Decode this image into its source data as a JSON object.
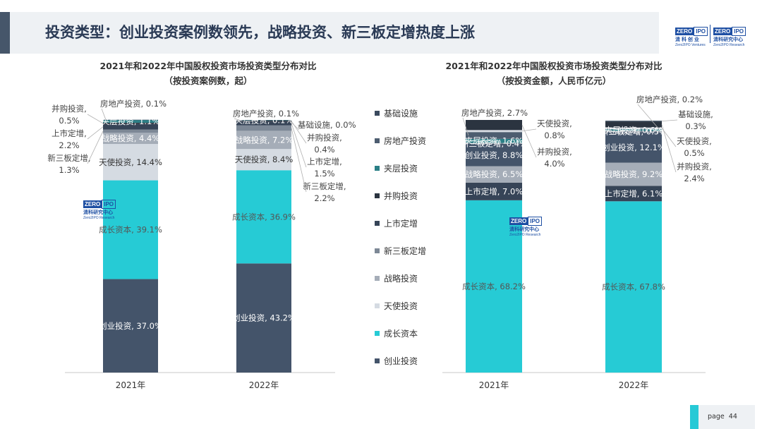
{
  "page": {
    "title": "投资类型：创业投资案例数领先，战略投资、新三板定增热度上涨",
    "page_label": "page",
    "page_number": "44",
    "brand": {
      "zero": "ZERO",
      "ipo": "IPO",
      "left_cn": "清 科 创 业",
      "left_en": "Zero2IPO Ventures",
      "right_cn": "清科研究中心",
      "right_en": "Zero2IPO Research"
    },
    "watermark": {
      "zero": "ZERO",
      "ipo": "IPO",
      "cn": "清科研究中心",
      "en": "Zero2IPO Research"
    }
  },
  "legend": [
    {
      "name": "基础设施",
      "color": "#3a4a5e"
    },
    {
      "name": "房地产投资",
      "color": "#4d5d70"
    },
    {
      "name": "夹层投资",
      "color": "#2a7f86"
    },
    {
      "name": "并购投资",
      "color": "#2b3440"
    },
    {
      "name": "上市定增",
      "color": "#364457"
    },
    {
      "name": "新三板定增",
      "color": "#7d8896"
    },
    {
      "name": "战略投资",
      "color": "#a5adb8"
    },
    {
      "name": "天使投资",
      "color": "#d5dbe2"
    },
    {
      "name": "成长资本",
      "color": "#26cbd5"
    },
    {
      "name": "创业投资",
      "color": "#44546a"
    }
  ],
  "chart_data": [
    {
      "type": "bar",
      "stacked": true,
      "title": "2021年和2022年中国股权投资市场投资类型分布对比",
      "subtitle": "（按投资案例数，起）",
      "categories": [
        "2021年",
        "2022年"
      ],
      "series": [
        {
          "name": "创业投资",
          "values": [
            37.0,
            43.2
          ]
        },
        {
          "name": "成长资本",
          "values": [
            39.1,
            36.9
          ]
        },
        {
          "name": "天使投资",
          "values": [
            14.4,
            8.4
          ]
        },
        {
          "name": "战略投资",
          "values": [
            4.4,
            7.2
          ]
        },
        {
          "name": "新三板定增",
          "values": [
            1.3,
            2.2
          ]
        },
        {
          "name": "上市定增",
          "values": [
            2.2,
            1.5
          ]
        },
        {
          "name": "并购投资",
          "values": [
            0.5,
            0.4
          ]
        },
        {
          "name": "夹层投资",
          "values": [
            1.1,
            0.1
          ]
        },
        {
          "name": "房地产投资",
          "values": [
            0.1,
            0.1
          ]
        },
        {
          "name": "基础设施",
          "values": [
            0.0,
            0.0
          ]
        }
      ],
      "labels": {
        "2021年": {
          "创业投资": "创业投资, 37.0%",
          "成长资本": "成长资本, 39.1%",
          "天使投资": "天使投资, 14.4%",
          "战略投资": "战略投资, 4.4%",
          "夹层投资": "夹层投资, 1.1%",
          "房地产投资": "房地产投资, 0.1%",
          "并购投资_1": "并购投资,",
          "并购投资_2": "0.5%",
          "上市定增_1": "上市定增,",
          "上市定增_2": "2.2%",
          "新三板定增_1": "新三板定增,",
          "新三板定增_2": "1.3%"
        },
        "2022年": {
          "创业投资": "创业投资, 43.2%",
          "成长资本": "成长资本, 36.9%",
          "天使投资": "天使投资, 8.4%",
          "战略投资": "战略投资, 7.2%",
          "夹层投资": "夹层投资, 0.1%",
          "房地产投资": "房地产投资, 0.1%",
          "基础设施": "基础设施, 0.0%",
          "并购投资_1": "并购投资,",
          "并购投资_2": "0.4%",
          "上市定增_1": "上市定增,",
          "上市定增_2": "1.5%",
          "新三板定增_1": "新三板定增,",
          "新三板定增_2": "2.2%"
        }
      }
    },
    {
      "type": "bar",
      "stacked": true,
      "title": "2021年和2022年中国股权投资市场投资类型分布对比",
      "subtitle": "（按投资金额，人民币亿元）",
      "categories": [
        "2021年",
        "2022年"
      ],
      "series": [
        {
          "name": "成长资本",
          "values": [
            68.2,
            67.8
          ]
        },
        {
          "name": "上市定增",
          "values": [
            7.0,
            6.1
          ]
        },
        {
          "name": "战略投资",
          "values": [
            6.5,
            9.2
          ]
        },
        {
          "name": "创业投资",
          "values": [
            8.8,
            12.1
          ]
        },
        {
          "name": "新三板定增",
          "values": [
            0.4,
            0.5
          ]
        },
        {
          "name": "夹层投资",
          "values": [
            1.6,
            0.6
          ]
        },
        {
          "name": "房地产投资",
          "values": [
            2.7,
            0.2
          ]
        },
        {
          "name": "天使投资",
          "values": [
            0.8,
            0.5
          ]
        },
        {
          "name": "并购投资",
          "values": [
            4.0,
            2.4
          ]
        },
        {
          "name": "基础设施",
          "values": [
            0.0,
            0.3
          ]
        }
      ],
      "labels": {
        "2021年": {
          "成长资本": "成长资本, 68.2%",
          "上市定增": "上市定增, 7.0%",
          "战略投资": "战略投资, 6.5%",
          "创业投资": "创业投资, 8.8%",
          "新三板定增": "新三板定增, 0.4%",
          "夹层投资": "夹层投资, 1.6%",
          "房地产投资": "房地产投资, 2.7%",
          "天使投资_1": "天使投资,",
          "天使投资_2": "0.8%",
          "并购投资_1": "并购投资,",
          "并购投资_2": "4.0%"
        },
        "2022年": {
          "成长资本": "成长资本, 67.8%",
          "上市定增": "上市定增, 6.1%",
          "战略投资": "战略投资, 9.2%",
          "创业投资": "创业投资, 12.1%",
          "新三板定增": "新三板定增, 0.5%",
          "夹层投资": "夹层投资, 0.6%",
          "房地产投资": "房地产投资, 0.2%",
          "基础设施_1": "基础设施,",
          "基础设施_2": "0.3%",
          "天使投资_1": "天使投资,",
          "天使投资_2": "0.5%",
          "并购投资_1": "并购投资,",
          "并购投资_2": "2.4%"
        }
      }
    }
  ]
}
